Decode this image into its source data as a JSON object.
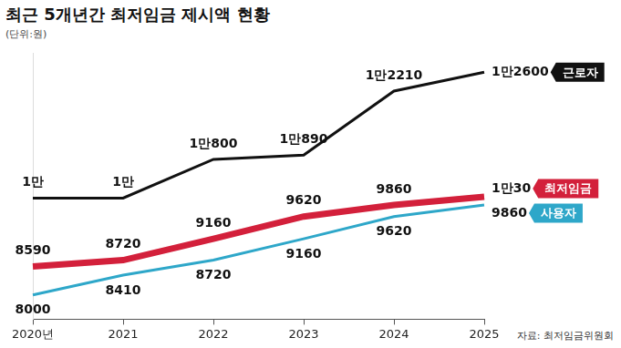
{
  "chart_data": {
    "type": "line",
    "title": "최근 5개년간 최저임금 제시액 현황",
    "subtitle": "(단위:원)",
    "source": "자료: 최저임금위원회",
    "categories": [
      "2020년",
      "2021",
      "2022",
      "2023",
      "2024",
      "2025"
    ],
    "series": [
      {
        "name": "근로자",
        "color": "#111111",
        "values": [
          10000,
          10000,
          10800,
          10890,
          12210,
          12600
        ],
        "value_labels": [
          "1만",
          "1만",
          "1만800",
          "1만890",
          "1만2210",
          "1만2600"
        ]
      },
      {
        "name": "최저임금",
        "color": "#d3203b",
        "values": [
          8590,
          8720,
          9160,
          9620,
          9860,
          10030
        ],
        "value_labels": [
          "8590",
          "8720",
          "9160",
          "9620",
          "9860",
          "1만30"
        ]
      },
      {
        "name": "사용자",
        "color": "#2ea7c9",
        "values": [
          8000,
          8410,
          8720,
          9160,
          9620,
          9860
        ],
        "value_labels": [
          "8000",
          "8410",
          "8720",
          "9160",
          "9620",
          "9860"
        ]
      }
    ],
    "ylim": [
      7500,
      13000
    ],
    "tick_labels": "x",
    "grid": false,
    "data_labels": true,
    "marker": "none"
  }
}
